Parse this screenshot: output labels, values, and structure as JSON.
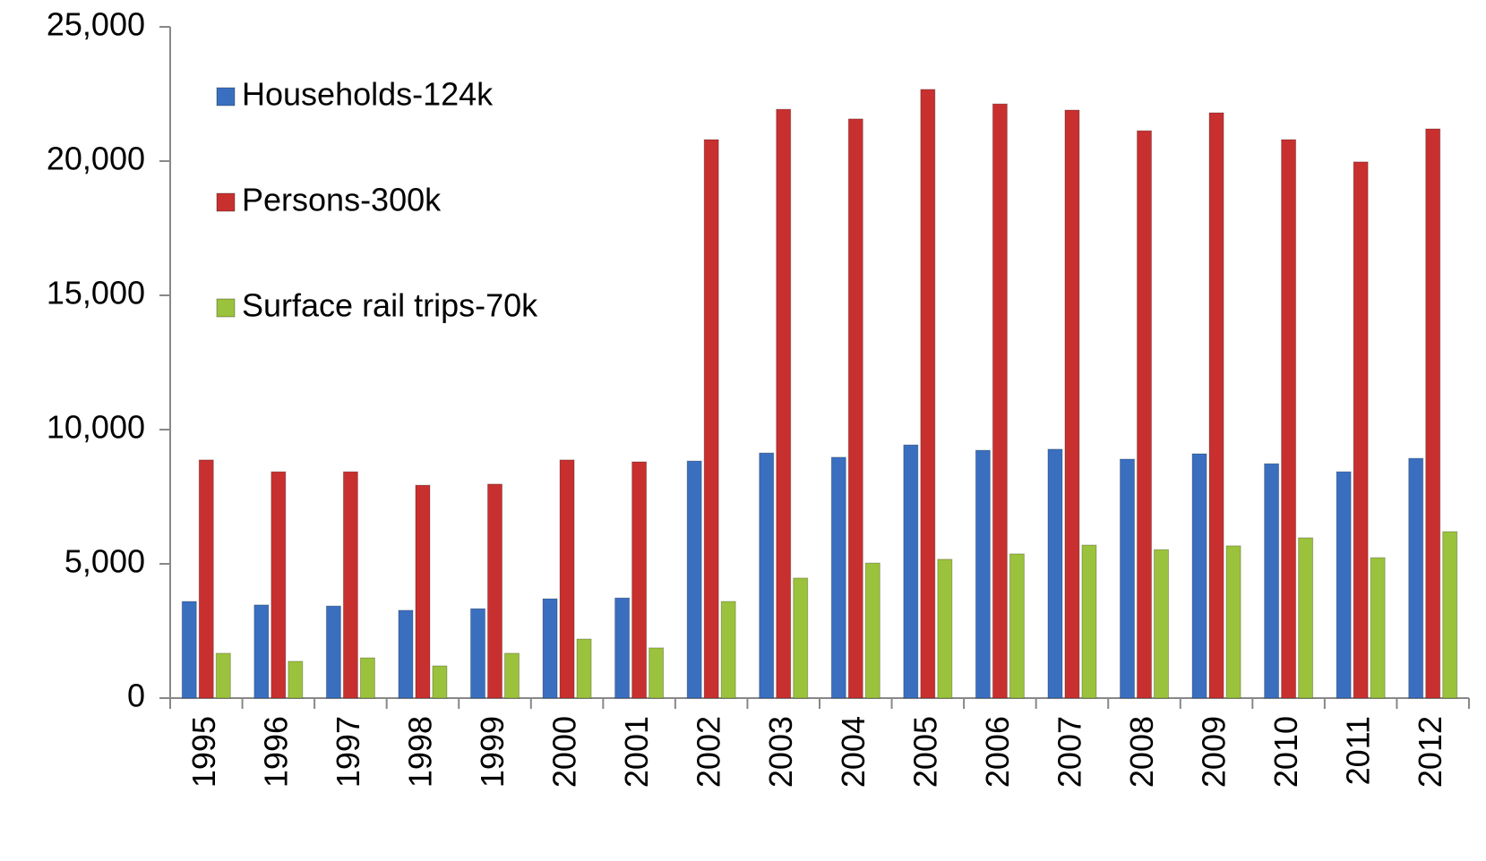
{
  "chart_data": {
    "type": "bar",
    "categories": [
      "1995",
      "1996",
      "1997",
      "1998",
      "1999",
      "2000",
      "2001",
      "2002",
      "2003",
      "2004",
      "2005",
      "2006",
      "2007",
      "2008",
      "2009",
      "2010",
      "2011",
      "2012"
    ],
    "series": [
      {
        "name": "Households-124k",
        "color": "#3a6fc0",
        "values": [
          3600,
          3470,
          3430,
          3270,
          3330,
          3700,
          3730,
          8830,
          9130,
          8970,
          9430,
          9230,
          9270,
          8900,
          9100,
          8730,
          8430,
          8930
        ]
      },
      {
        "name": "Persons-300k",
        "color": "#c8302f",
        "values": [
          8870,
          8430,
          8430,
          7930,
          7970,
          8870,
          8800,
          20800,
          21930,
          21570,
          22670,
          22130,
          21900,
          21130,
          21800,
          20800,
          19970,
          21200
        ]
      },
      {
        "name": "Surface rail trips-70k",
        "color": "#9bc23c",
        "values": [
          1670,
          1370,
          1500,
          1200,
          1670,
          2200,
          1870,
          3600,
          4470,
          5030,
          5170,
          5370,
          5700,
          5530,
          5670,
          5970,
          5230,
          6200
        ]
      }
    ],
    "ylim": [
      0,
      25000
    ],
    "yticks": [
      0,
      {
        "value": 5000,
        "label": "5,000"
      },
      {
        "value": 10000,
        "label": "10,000"
      },
      {
        "value": 15000,
        "label": "15,000"
      },
      {
        "value": 20000,
        "label": "20,000"
      },
      {
        "value": 25000,
        "label": "25,000"
      }
    ],
    "grid": false,
    "legend": "upper-left"
  }
}
